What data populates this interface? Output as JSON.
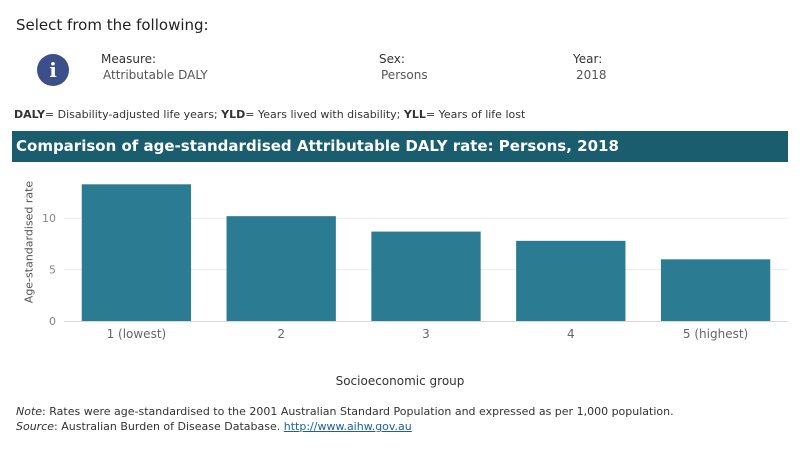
{
  "header": {
    "title": "Select from the following:"
  },
  "filters": {
    "info_icon": "info-icon",
    "measure": {
      "label": "Measure:",
      "value": "Attributable DALY"
    },
    "sex": {
      "label": "Sex:",
      "value": "Persons"
    },
    "year": {
      "label": "Year:",
      "value": "2018"
    }
  },
  "abbreviations": {
    "daly_key": "DALY",
    "daly_text": "= Disability-adjusted life years; ",
    "yld_key": "YLD",
    "yld_text": "= Years lived with disability; ",
    "yll_key": "YLL",
    "yll_text": "= Years of life lost"
  },
  "chart_data": {
    "type": "bar",
    "title": "Comparison of age-standardised Attributable DALY rate:  Persons, 2018",
    "xlabel": "Socioeconomic group",
    "ylabel": "Age-standardised rate",
    "categories": [
      "1 (lowest)",
      "2",
      "3",
      "4",
      "5 (highest)"
    ],
    "values": [
      13.3,
      10.2,
      8.7,
      7.8,
      6.0
    ],
    "yticks": [
      "0",
      "5",
      "10"
    ],
    "ylim": [
      0,
      14.4
    ],
    "bar_color": "#2b7b93",
    "grid": true
  },
  "footer": {
    "note_label": "Note",
    "note_text": ": Rates were age-standardised to the 2001 Australian Standard Population and expressed as per 1,000 population.",
    "source_label": "Source",
    "source_text": ": Australian Burden of Disease Database. ",
    "source_link": "http://www.aihw.gov.au"
  }
}
